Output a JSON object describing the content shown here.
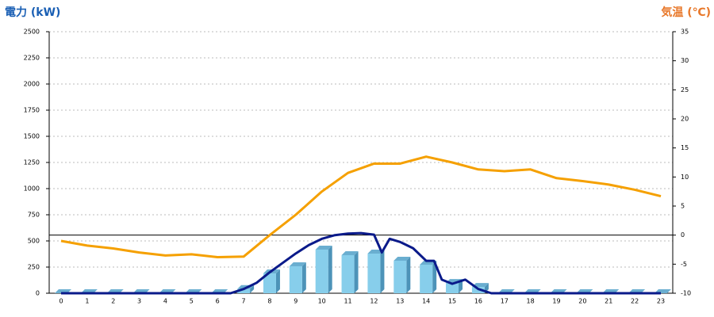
{
  "chart_data": {
    "type": "bar",
    "ylabel": "電力 (kW)",
    "y2label": "気温 (℃)",
    "categories": [
      "0",
      "1",
      "2",
      "3",
      "4",
      "5",
      "6",
      "7",
      "8",
      "9",
      "10",
      "11",
      "12",
      "13",
      "14",
      "15",
      "16",
      "17",
      "18",
      "19",
      "20",
      "21",
      "22",
      "23"
    ],
    "ylim": [
      0,
      2500
    ],
    "yticks": [
      0,
      250,
      500,
      750,
      1000,
      1250,
      1500,
      1750,
      2000,
      2250,
      2500
    ],
    "y2lim": [
      -10,
      35
    ],
    "y2ticks": [
      -10,
      -5,
      0,
      5,
      10,
      15,
      20,
      25,
      30,
      35
    ],
    "y2_refline": 0,
    "grid": true,
    "series": [
      {
        "type": "bar",
        "color": "#87ceeb",
        "values": [
          0,
          0,
          0,
          0,
          0,
          0,
          0,
          40,
          189,
          258,
          417,
          364,
          379,
          311,
          273,
          98,
          60,
          0,
          0,
          0,
          0,
          0,
          0,
          0
        ]
      },
      {
        "type": "line",
        "color": "#0a1a8a",
        "x": [
          0,
          6.5,
          7,
          7.5,
          8,
          8.5,
          9,
          9.5,
          10,
          10.5,
          11,
          11.5,
          12,
          12.3,
          12.6,
          13,
          13.5,
          14,
          14.3,
          14.6,
          15,
          15.5,
          16,
          16.5,
          23
        ],
        "values": [
          0,
          0,
          40,
          100,
          200,
          290,
          380,
          460,
          520,
          555,
          570,
          575,
          560,
          390,
          520,
          490,
          430,
          310,
          310,
          130,
          90,
          130,
          40,
          0,
          0
        ]
      },
      {
        "type": "line",
        "axis": "y2",
        "color": "#f5a000",
        "values": [
          -1,
          -1.8,
          -2.3,
          -3,
          -3.5,
          -3.3,
          -3.8,
          -3.7,
          0,
          3.5,
          7.5,
          10.7,
          12.3,
          12.3,
          13.5,
          12.5,
          11.3,
          11,
          11.3,
          9.8,
          9.3,
          8.7,
          7.8,
          6.7
        ]
      }
    ]
  }
}
